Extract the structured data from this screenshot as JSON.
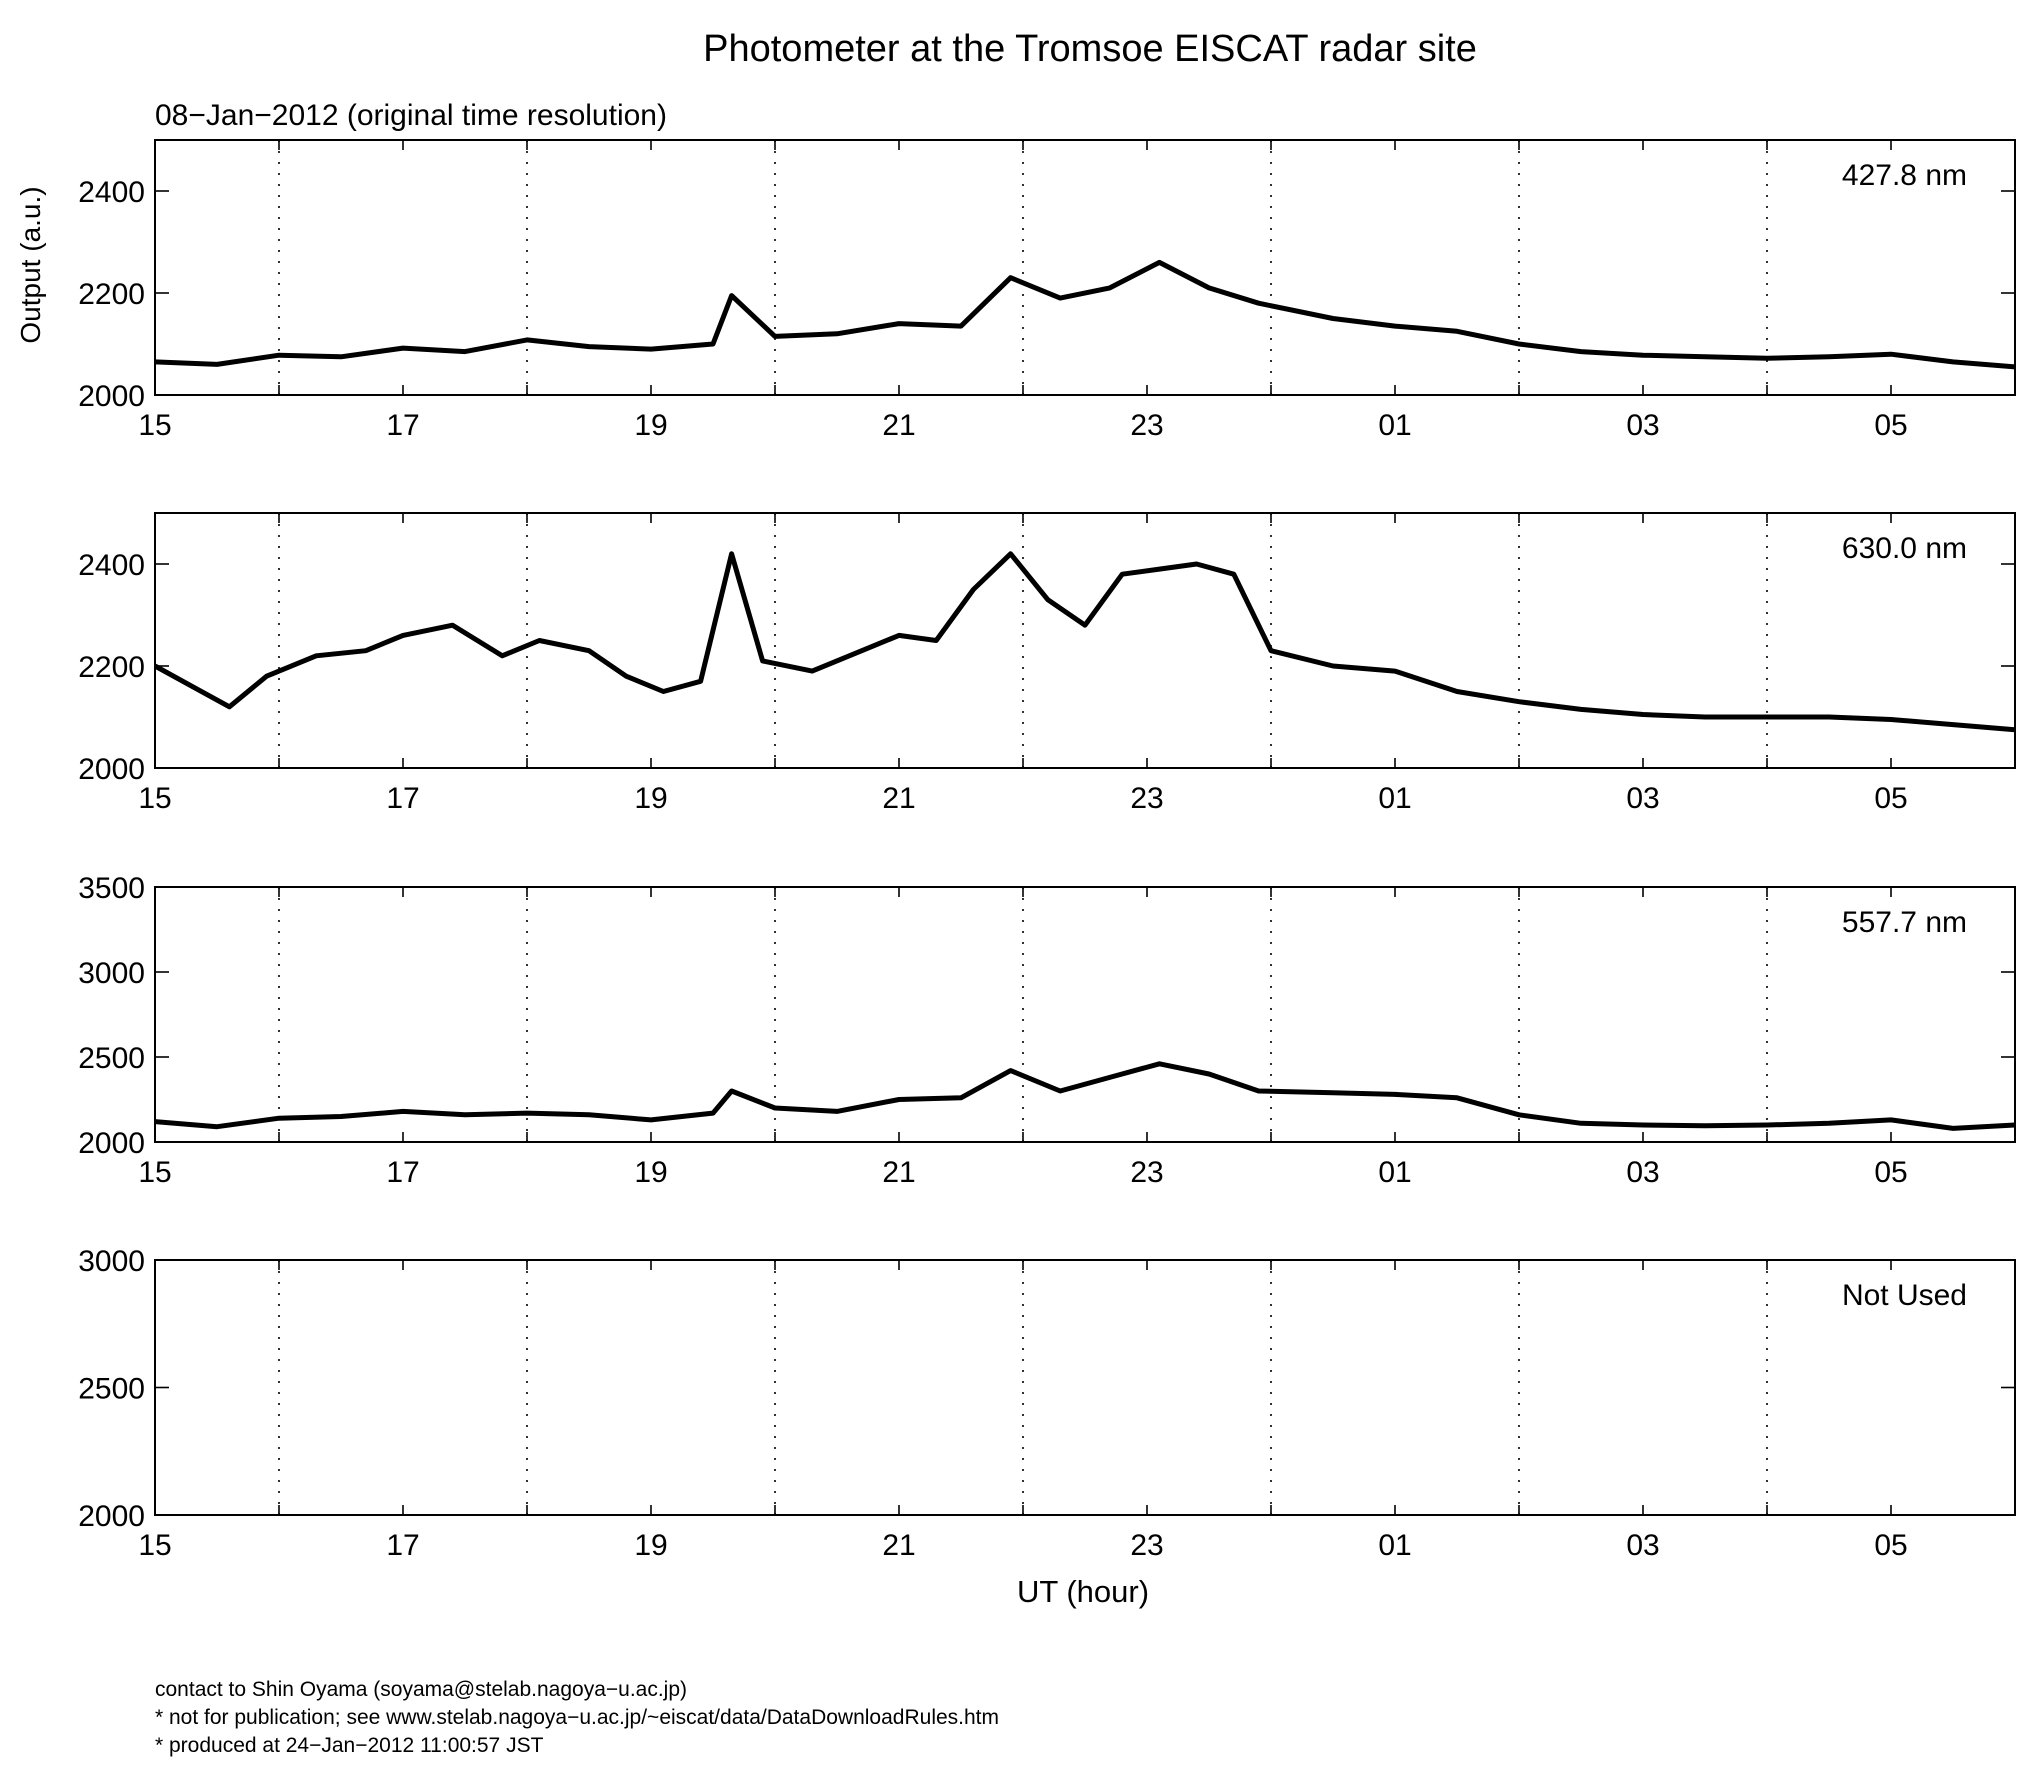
{
  "title": "Photometer at the Tromsoe EISCAT radar site",
  "subtitle": "08−Jan−2012 (original time resolution)",
  "ylabel": "Output (a.u.)",
  "xlabel": "UT (hour)",
  "footer": [
    "contact to Shin Oyama (soyama@stelab.nagoya−u.ac.jp)",
    "* not for publication; see www.stelab.nagoya−u.ac.jp/~eiscat/data/DataDownloadRules.htm",
    "* produced at 24−Jan−2012 11:00:57 JST"
  ],
  "chart_data": [
    {
      "type": "line",
      "label": "427.8 nm",
      "xlim": [
        15,
        30
      ],
      "ylim": [
        2000,
        2500
      ],
      "yticks": [
        2000,
        2200,
        2400
      ],
      "xtick_labels": [
        "15",
        "17",
        "19",
        "21",
        "23",
        "01",
        "03",
        "05"
      ],
      "grid": "dotted vertical, hourly",
      "x": [
        15.0,
        15.5,
        16.0,
        16.5,
        17.0,
        17.5,
        18.0,
        18.5,
        19.0,
        19.5,
        19.65,
        20.0,
        20.5,
        21.0,
        21.5,
        21.9,
        22.3,
        22.7,
        23.1,
        23.5,
        23.9,
        24.5,
        25.0,
        25.5,
        26.0,
        26.5,
        27.0,
        27.5,
        28.0,
        28.5,
        29.0,
        29.5,
        30.0
      ],
      "y": [
        2065,
        2060,
        2078,
        2075,
        2092,
        2085,
        2108,
        2095,
        2090,
        2100,
        2195,
        2115,
        2120,
        2140,
        2135,
        2230,
        2190,
        2210,
        2260,
        2210,
        2180,
        2150,
        2135,
        2125,
        2100,
        2085,
        2078,
        2075,
        2072,
        2075,
        2080,
        2065,
        2055
      ]
    },
    {
      "type": "line",
      "label": "630.0 nm",
      "xlim": [
        15,
        30
      ],
      "ylim": [
        2000,
        2500
      ],
      "yticks": [
        2000,
        2200,
        2400
      ],
      "xtick_labels": [
        "15",
        "17",
        "19",
        "21",
        "23",
        "01",
        "03",
        "05"
      ],
      "grid": "dotted vertical, hourly",
      "x": [
        15.0,
        15.3,
        15.6,
        15.9,
        16.3,
        16.7,
        17.0,
        17.4,
        17.8,
        18.1,
        18.5,
        18.8,
        19.1,
        19.4,
        19.65,
        19.9,
        20.3,
        20.7,
        21.0,
        21.3,
        21.6,
        21.9,
        22.2,
        22.5,
        22.8,
        23.1,
        23.4,
        23.7,
        24.0,
        24.5,
        25.0,
        25.5,
        26.0,
        26.5,
        27.0,
        27.5,
        28.0,
        28.5,
        29.0,
        29.5,
        30.0
      ],
      "y": [
        2200,
        2160,
        2120,
        2180,
        2220,
        2230,
        2260,
        2280,
        2220,
        2250,
        2230,
        2180,
        2150,
        2170,
        2420,
        2210,
        2190,
        2230,
        2260,
        2250,
        2350,
        2420,
        2330,
        2280,
        2380,
        2390,
        2400,
        2380,
        2230,
        2200,
        2190,
        2150,
        2130,
        2115,
        2105,
        2100,
        2100,
        2100,
        2095,
        2085,
        2075
      ]
    },
    {
      "type": "line",
      "label": "557.7 nm",
      "xlim": [
        15,
        30
      ],
      "ylim": [
        2000,
        3500
      ],
      "yticks": [
        2000,
        2500,
        3000,
        3500
      ],
      "xtick_labels": [
        "15",
        "17",
        "19",
        "21",
        "23",
        "01",
        "03",
        "05"
      ],
      "grid": "dotted vertical, hourly",
      "x": [
        15.0,
        15.5,
        16.0,
        16.5,
        17.0,
        17.5,
        18.0,
        18.5,
        19.0,
        19.5,
        19.65,
        20.0,
        20.5,
        21.0,
        21.5,
        21.9,
        22.3,
        22.7,
        23.1,
        23.5,
        23.9,
        24.5,
        25.0,
        25.5,
        26.0,
        26.5,
        27.0,
        27.5,
        28.0,
        28.5,
        29.0,
        29.5,
        30.0
      ],
      "y": [
        2120,
        2090,
        2140,
        2150,
        2180,
        2160,
        2170,
        2160,
        2130,
        2170,
        2300,
        2200,
        2180,
        2250,
        2260,
        2420,
        2300,
        2380,
        2460,
        2400,
        2300,
        2290,
        2280,
        2260,
        2160,
        2110,
        2100,
        2095,
        2100,
        2110,
        2130,
        2080,
        2100
      ]
    },
    {
      "type": "line",
      "label": "Not Used",
      "xlim": [
        15,
        30
      ],
      "ylim": [
        2000,
        3000
      ],
      "yticks": [
        2000,
        2500,
        3000
      ],
      "xtick_labels": [
        "15",
        "17",
        "19",
        "21",
        "23",
        "01",
        "03",
        "05"
      ],
      "grid": "dotted vertical, hourly",
      "x": [],
      "y": []
    }
  ]
}
